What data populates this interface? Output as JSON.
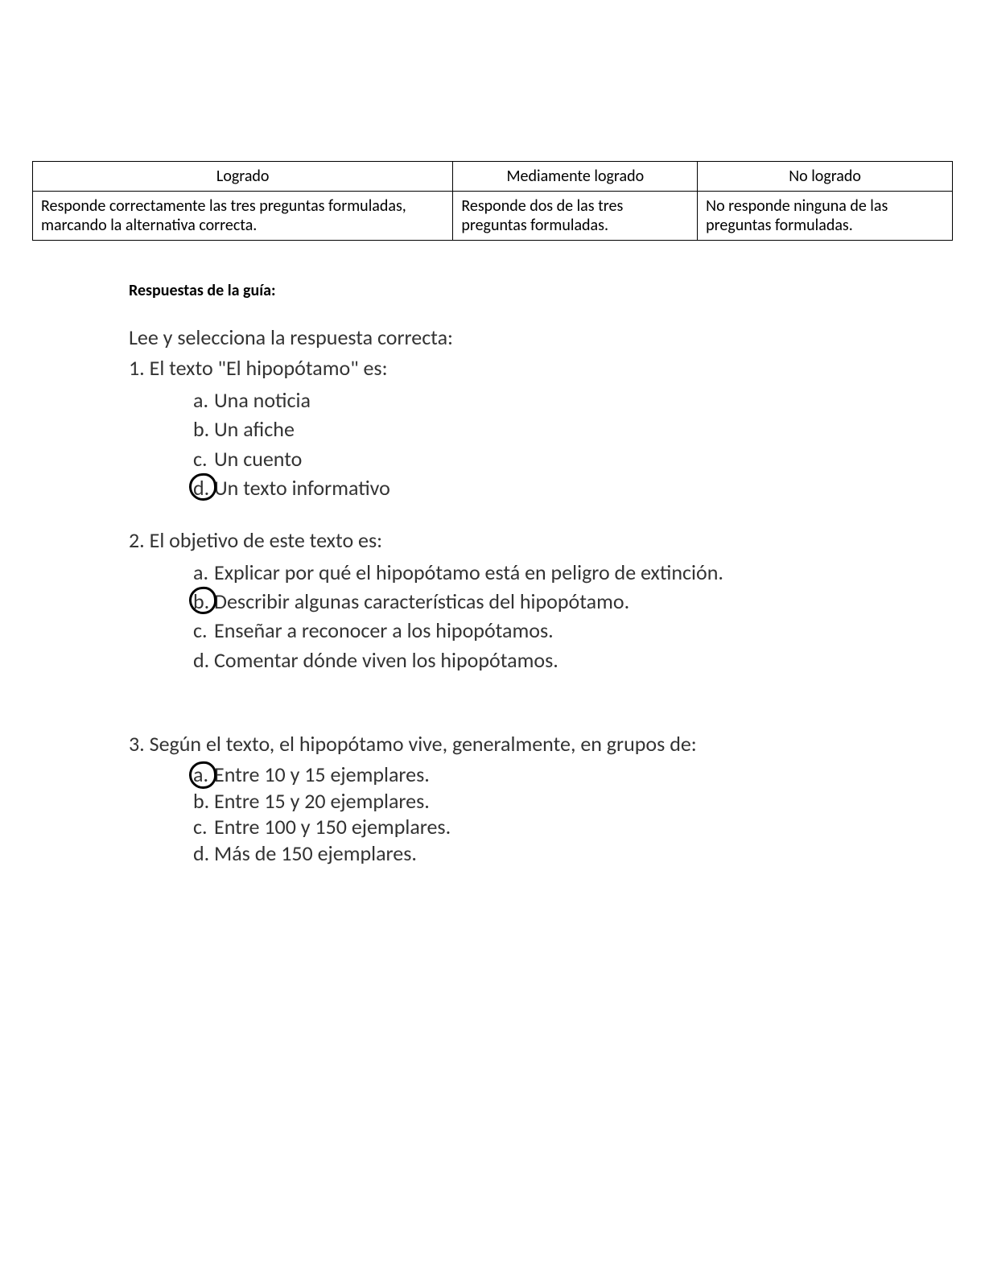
{
  "rubric": {
    "headers": [
      "Logrado",
      "Mediamente logrado",
      "No logrado"
    ],
    "cells": [
      "Responde correctamente las tres preguntas formuladas, marcando la alternativa correcta.",
      "Responde dos de las tres preguntas formuladas.",
      "No responde ninguna de las preguntas formuladas."
    ],
    "border_color": "#000000",
    "font_size": 20
  },
  "section_title": "Respuestas de la guía:",
  "instruction": "Lee y selecciona la respuesta correcta:",
  "questions": [
    {
      "number": "1.",
      "text": "El texto \"El hipopótamo\" es:",
      "options": [
        {
          "letter": "a.",
          "text": "Una noticia",
          "circled": false
        },
        {
          "letter": "b.",
          "text": "Un afiche",
          "circled": false
        },
        {
          "letter": "c.",
          "text": "Un cuento",
          "circled": false
        },
        {
          "letter": "d.",
          "text": "Un texto informativo",
          "circled": true
        }
      ]
    },
    {
      "number": "2.",
      "text": "El objetivo de este texto es:",
      "options": [
        {
          "letter": "a.",
          "text": "Explicar por qué el hipopótamo está en peligro de extinción.",
          "circled": false
        },
        {
          "letter": "b.",
          "text": "Describir algunas características del hipopótamo.",
          "circled": true
        },
        {
          "letter": "c.",
          "text": "Enseñar a reconocer a los hipopótamos.",
          "circled": false
        },
        {
          "letter": "d.",
          "text": "Comentar dónde viven los hipopótamos.",
          "circled": false
        }
      ]
    },
    {
      "number": "3.",
      "text": "Según el texto, el hipopótamo vive, generalmente, en grupos de:",
      "options": [
        {
          "letter": "a.",
          "text": "Entre 10 y 15 ejemplares.",
          "circled": true
        },
        {
          "letter": "b.",
          "text": "Entre 15 y 20 ejemplares.",
          "circled": false
        },
        {
          "letter": "c.",
          "text": "Entre 100 y 150 ejemplares.",
          "circled": false
        },
        {
          "letter": "d.",
          "text": "Más de 150 ejemplares.",
          "circled": false
        }
      ]
    }
  ],
  "colors": {
    "background": "#ffffff",
    "text": "#000000",
    "content_text": "#333333",
    "circle": "#000000"
  },
  "typography": {
    "body_font": "Calibri, Arial, sans-serif",
    "rubric_font_size": 20,
    "section_title_size": 20,
    "content_size": 26
  }
}
